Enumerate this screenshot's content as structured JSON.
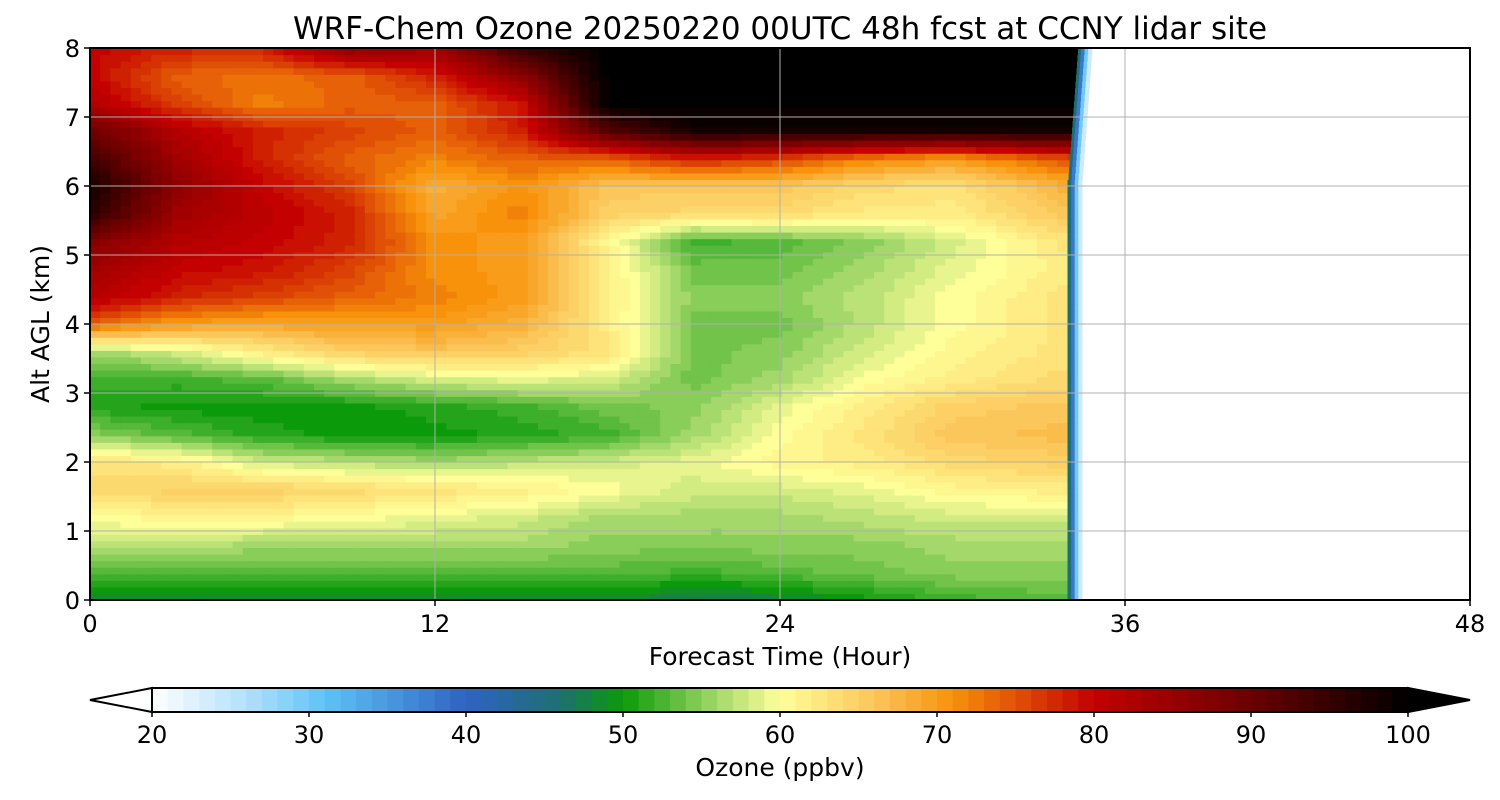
{
  "chart_data": {
    "type": "heatmap",
    "title": "WRF-Chem Ozone  20250220 00UTC 48h fcst at CCNY lidar site",
    "xlabel": "Forecast Time (Hour)",
    "ylabel": "Alt AGL (km)",
    "xlim": [
      0,
      48
    ],
    "ylim": [
      0,
      8
    ],
    "x_ticks": [
      "0",
      "12",
      "24",
      "36",
      "48"
    ],
    "y_ticks": [
      "0",
      "1",
      "2",
      "3",
      "4",
      "5",
      "6",
      "7",
      "8"
    ],
    "grid": true,
    "data_end_hour": 34.5,
    "no_data_region": "hours 34.5-48 blank (white)",
    "z_grid_columns_hour": [
      0,
      3,
      6,
      9,
      12,
      15,
      18,
      21,
      24,
      27,
      30,
      34
    ],
    "z_grid_rows_km": [
      0,
      0.4,
      0.8,
      1.2,
      1.6,
      2.0,
      2.4,
      2.8,
      3.2,
      3.6,
      4.0,
      4.4,
      4.8,
      5.2,
      5.6,
      6.0,
      6.4,
      6.8,
      7.2,
      7.6,
      8.0
    ],
    "z_values_ppbv": [
      [
        48,
        48,
        48,
        48,
        48,
        49,
        49,
        47,
        48,
        50,
        52,
        53
      ],
      [
        53,
        53,
        53,
        53,
        53,
        53,
        53,
        52,
        53,
        54,
        55,
        55
      ],
      [
        57,
        57,
        56,
        56,
        56,
        56,
        55,
        55,
        55,
        55,
        56,
        56
      ],
      [
        60,
        61,
        61,
        60,
        59,
        58,
        56,
        56,
        56,
        57,
        58,
        58
      ],
      [
        64,
        65,
        65,
        64,
        63,
        62,
        60,
        58,
        58,
        59,
        61,
        62
      ],
      [
        63,
        62,
        58,
        57,
        56,
        57,
        58,
        59,
        61,
        62,
        64,
        65
      ],
      [
        55,
        53,
        51,
        50,
        50,
        51,
        52,
        56,
        60,
        63,
        66,
        67
      ],
      [
        51,
        50,
        50,
        50,
        51,
        52,
        54,
        55,
        59,
        62,
        65,
        66
      ],
      [
        52,
        52,
        53,
        56,
        58,
        59,
        58,
        54,
        56,
        60,
        62,
        64
      ],
      [
        56,
        58,
        62,
        65,
        66,
        65,
        63,
        54,
        55,
        58,
        61,
        63
      ],
      [
        74,
        70,
        69,
        70,
        70,
        68,
        62,
        54,
        54,
        57,
        60,
        63
      ],
      [
        82,
        78,
        76,
        74,
        72,
        70,
        62,
        55,
        55,
        57,
        60,
        63
      ],
      [
        84,
        80,
        79,
        76,
        71,
        70,
        62,
        54,
        54,
        56,
        59,
        62
      ],
      [
        87,
        82,
        80,
        78,
        71,
        70,
        61,
        52,
        53,
        55,
        58,
        63
      ],
      [
        96,
        84,
        81,
        78,
        69,
        72,
        65,
        64,
        64,
        62,
        62,
        66
      ],
      [
        98,
        86,
        80,
        76,
        68,
        71,
        66,
        66,
        66,
        64,
        63,
        68
      ],
      [
        94,
        84,
        78,
        74,
        72,
        74,
        74,
        78,
        76,
        72,
        70,
        75
      ],
      [
        90,
        82,
        78,
        76,
        74,
        78,
        92,
        98,
        98,
        98,
        98,
        98
      ],
      [
        82,
        76,
        72,
        74,
        74,
        79,
        100,
        100,
        100,
        100,
        100,
        100
      ],
      [
        80,
        74,
        73,
        74,
        78,
        86,
        100,
        100,
        100,
        100,
        100,
        100
      ],
      [
        80,
        78,
        78,
        86,
        84,
        95,
        100,
        100,
        100,
        100,
        100,
        100
      ]
    ],
    "colorbar": {
      "label": "Ozone  (ppbv)",
      "min": 20,
      "max": 100,
      "ticks": [
        "20",
        "30",
        "40",
        "50",
        "60",
        "70",
        "80",
        "90",
        "100"
      ],
      "extend": "both",
      "color_stops": [
        {
          "v": 20,
          "c": "#ffffff"
        },
        {
          "v": 26,
          "c": "#b3e0fb"
        },
        {
          "v": 31,
          "c": "#5ec3f5"
        },
        {
          "v": 40,
          "c": "#2f63c2"
        },
        {
          "v": 46,
          "c": "#1f6f70"
        },
        {
          "v": 50,
          "c": "#0a9a0a"
        },
        {
          "v": 56,
          "c": "#a4d86a"
        },
        {
          "v": 60,
          "c": "#ffff9a"
        },
        {
          "v": 66,
          "c": "#fbc65a"
        },
        {
          "v": 71,
          "c": "#f7920a"
        },
        {
          "v": 80,
          "c": "#c40000"
        },
        {
          "v": 90,
          "c": "#6a0000"
        },
        {
          "v": 100,
          "c": "#000000"
        }
      ]
    }
  }
}
